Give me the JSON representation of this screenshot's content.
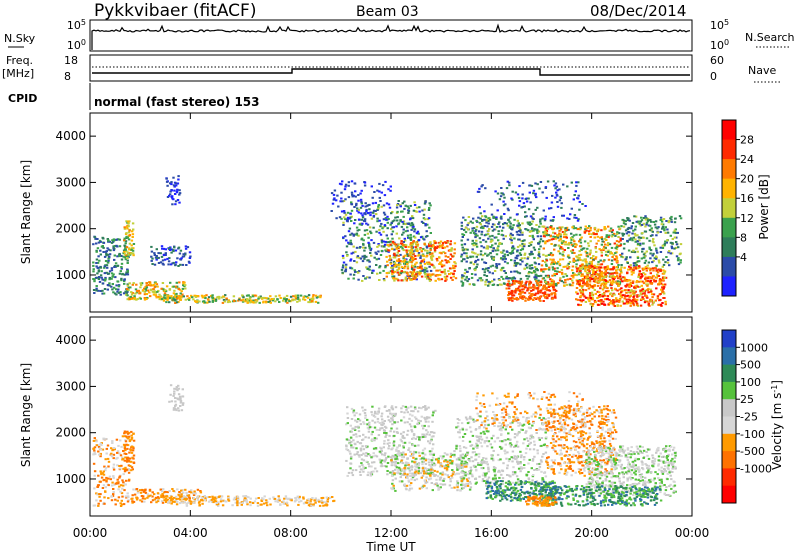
{
  "header": {
    "title": "Pykkvibaer (fitACF)",
    "beam": "Beam 03",
    "date": "08/Dec/2014",
    "cpid_label": "CPID",
    "cpid_value": "normal (fast stereo) 153"
  },
  "noise_panel": {
    "left_label": "N.Sky",
    "right_label": "N.Search",
    "left_ticks": [
      "10^5",
      "10^0"
    ],
    "right_ticks": [
      "10^5",
      "10^0"
    ]
  },
  "freq_panel": {
    "left_label_1": "Freq.",
    "left_label_2": "[MHz]",
    "right_label": "Nave",
    "left_ticks": [
      "18",
      "8"
    ],
    "right_ticks": [
      "60",
      "0"
    ]
  },
  "colors": {
    "power": [
      "#1e22ff",
      "#2b4ba8",
      "#2e7d5a",
      "#3aa14d",
      "#c2d03a",
      "#ffb300",
      "#ff7a00",
      "#ff2a00",
      "#ff0000"
    ],
    "velocity": [
      "#2140c8",
      "#2a6fa8",
      "#2e8a57",
      "#56c23c",
      "#c8c8c8",
      "#d6d6d6",
      "#ff9a00",
      "#ff7200",
      "#ff2a00",
      "#ff0000"
    ]
  },
  "chart_data": [
    {
      "type": "heatmap",
      "name": "power",
      "ylabel": "Slant Range [km]",
      "xlabel": "Time UT",
      "x_ticks": [
        "00:00",
        "04:00",
        "08:00",
        "12:00",
        "16:00",
        "20:00",
        "00:00"
      ],
      "y_ticks": [
        1000,
        2000,
        3000,
        4000
      ],
      "ylim": [
        200,
        4500
      ],
      "colorbar": {
        "label": "Power [dB]",
        "ticks": [
          "28",
          "24",
          "20",
          "16",
          "12",
          "8",
          "4"
        ]
      }
    },
    {
      "type": "heatmap",
      "name": "velocity",
      "ylabel": "Slant Range [km]",
      "xlabel": "Time UT",
      "x_ticks": [
        "00:00",
        "04:00",
        "08:00",
        "12:00",
        "16:00",
        "20:00",
        "00:00"
      ],
      "y_ticks": [
        1000,
        2000,
        3000,
        4000
      ],
      "ylim": [
        200,
        4500
      ],
      "colorbar": {
        "label": "Velocity [m s^-1]",
        "ticks": [
          "1000",
          "500",
          "100",
          "25",
          "-25",
          "-100",
          "-500",
          "-1000"
        ]
      }
    }
  ]
}
